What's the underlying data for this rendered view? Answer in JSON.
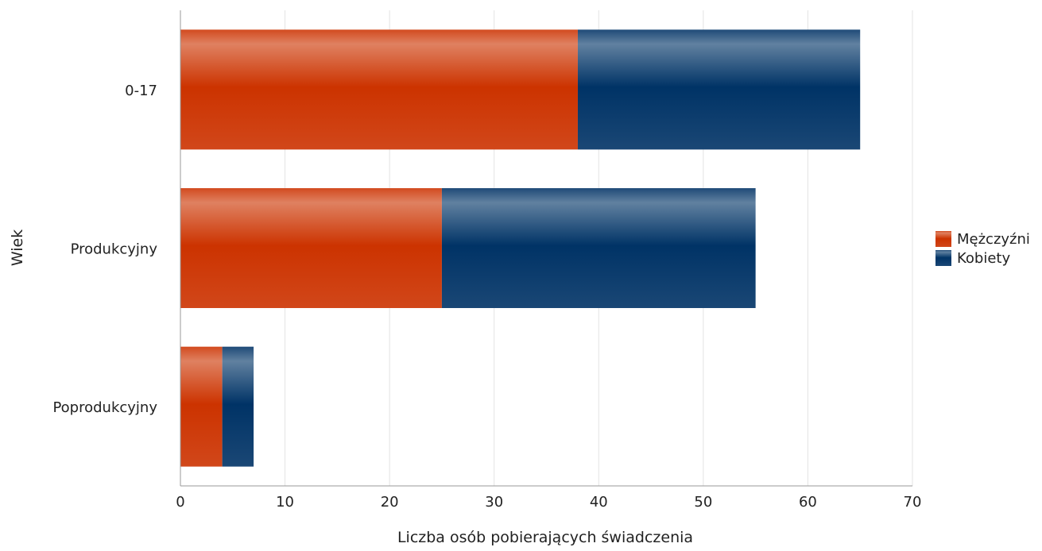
{
  "chart_data": {
    "type": "bar",
    "orientation": "horizontal",
    "stacked": true,
    "categories": [
      "0-17",
      "Produkcyjny",
      "Poprodukcyjny"
    ],
    "series": [
      {
        "name": "Mężczyźni",
        "values": [
          38,
          25,
          4
        ],
        "color": "#cc3300"
      },
      {
        "name": "Kobiety",
        "values": [
          27,
          30,
          3
        ],
        "color": "#003366"
      }
    ],
    "xlabel": "Liczba osób pobierających świadczenia",
    "ylabel": "Wiek",
    "xlim": [
      0,
      70
    ],
    "xticks": [
      0,
      10,
      20,
      30,
      40,
      50,
      60,
      70
    ],
    "grid": true,
    "legend_position": "right"
  }
}
